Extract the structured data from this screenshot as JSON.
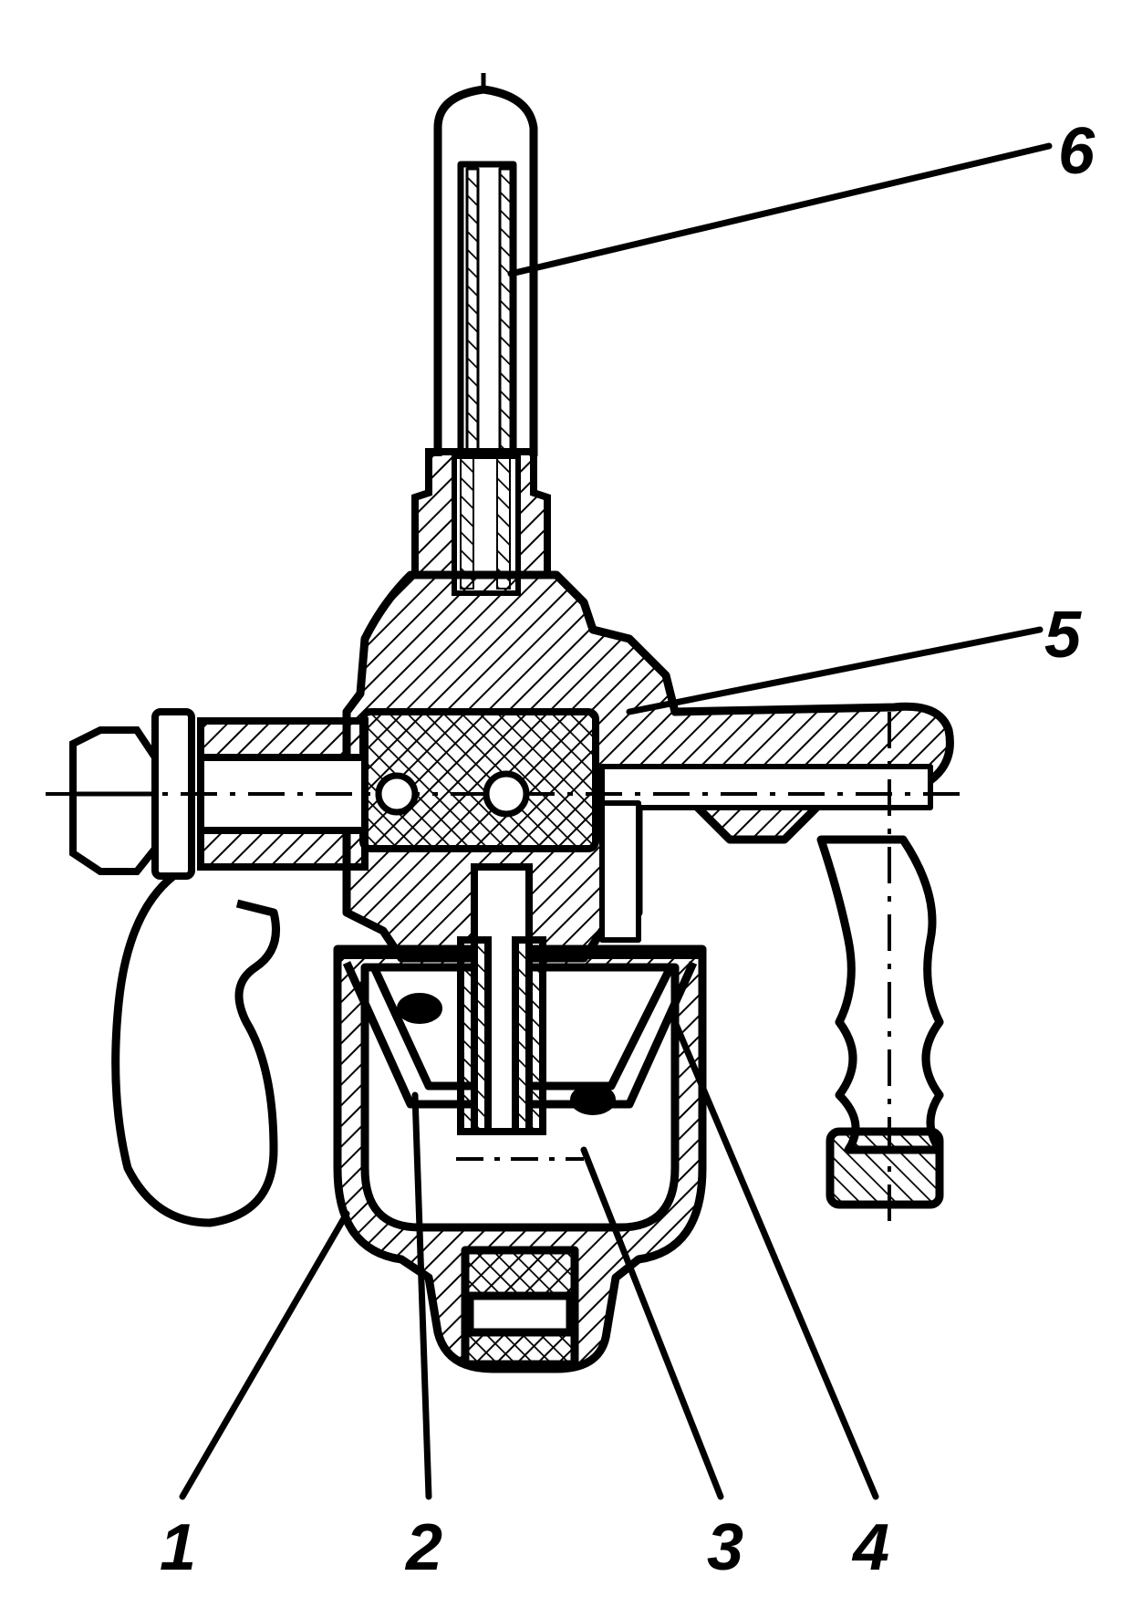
{
  "colors": {
    "ink": "#000000",
    "paper": "#ffffff"
  },
  "callouts": [
    {
      "id": "1",
      "label": "1"
    },
    {
      "id": "2",
      "label": "2"
    },
    {
      "id": "3",
      "label": "3"
    },
    {
      "id": "4",
      "label": "4"
    },
    {
      "id": "5",
      "label": "5"
    },
    {
      "id": "6",
      "label": "6"
    }
  ]
}
